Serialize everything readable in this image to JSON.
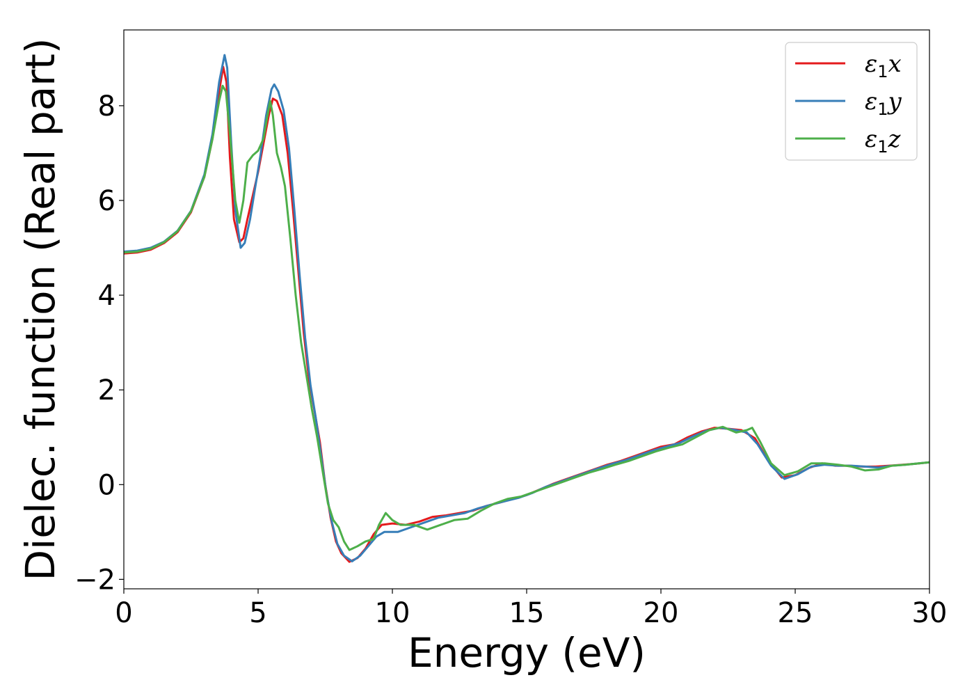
{
  "chart_data": {
    "type": "line",
    "xlabel": "Energy (eV)",
    "ylabel": "Dielec. function (Real part)",
    "xlim": [
      0,
      30
    ],
    "ylim": [
      -2.2,
      9.6
    ],
    "xticks": [
      0,
      5,
      10,
      15,
      20,
      25,
      30
    ],
    "yticks": [
      -2,
      0,
      2,
      4,
      6,
      8
    ],
    "ytick_labels": [
      "−2",
      "0",
      "2",
      "4",
      "6",
      "8"
    ],
    "grid": false,
    "legend_position": "top-right",
    "series": [
      {
        "name": "x",
        "legend_symbol": "ε",
        "legend_sub": "1",
        "color": "#e41a1c",
        "points": [
          [
            0,
            4.88
          ],
          [
            0.5,
            4.9
          ],
          [
            1,
            4.96
          ],
          [
            1.5,
            5.1
          ],
          [
            2,
            5.33
          ],
          [
            2.5,
            5.75
          ],
          [
            3,
            6.5
          ],
          [
            3.3,
            7.3
          ],
          [
            3.55,
            8.3
          ],
          [
            3.7,
            8.82
          ],
          [
            3.82,
            8.5
          ],
          [
            3.95,
            6.9
          ],
          [
            4.1,
            5.6
          ],
          [
            4.3,
            5.12
          ],
          [
            4.45,
            5.2
          ],
          [
            4.6,
            5.6
          ],
          [
            4.8,
            6.1
          ],
          [
            5.0,
            6.6
          ],
          [
            5.2,
            7.2
          ],
          [
            5.4,
            7.8
          ],
          [
            5.55,
            8.15
          ],
          [
            5.7,
            8.1
          ],
          [
            5.9,
            7.8
          ],
          [
            6.1,
            7.0
          ],
          [
            6.3,
            5.8
          ],
          [
            6.5,
            4.5
          ],
          [
            6.7,
            3.2
          ],
          [
            6.9,
            2.2
          ],
          [
            7.1,
            1.55
          ],
          [
            7.3,
            0.9
          ],
          [
            7.5,
            0.0
          ],
          [
            7.7,
            -0.7
          ],
          [
            7.9,
            -1.2
          ],
          [
            8.1,
            -1.45
          ],
          [
            8.4,
            -1.63
          ],
          [
            8.7,
            -1.55
          ],
          [
            9.0,
            -1.35
          ],
          [
            9.3,
            -1.05
          ],
          [
            9.6,
            -0.85
          ],
          [
            10.0,
            -0.82
          ],
          [
            10.5,
            -0.85
          ],
          [
            11,
            -0.78
          ],
          [
            11.5,
            -0.68
          ],
          [
            12,
            -0.65
          ],
          [
            12.5,
            -0.6
          ],
          [
            13,
            -0.55
          ],
          [
            13.5,
            -0.45
          ],
          [
            14,
            -0.38
          ],
          [
            14.5,
            -0.3
          ],
          [
            15,
            -0.22
          ],
          [
            15.5,
            -0.1
          ],
          [
            16,
            0.02
          ],
          [
            16.5,
            0.12
          ],
          [
            17,
            0.22
          ],
          [
            17.5,
            0.32
          ],
          [
            18,
            0.42
          ],
          [
            18.5,
            0.5
          ],
          [
            19,
            0.6
          ],
          [
            19.5,
            0.7
          ],
          [
            20,
            0.8
          ],
          [
            20.5,
            0.85
          ],
          [
            21,
            1.0
          ],
          [
            21.5,
            1.12
          ],
          [
            22,
            1.2
          ],
          [
            22.5,
            1.18
          ],
          [
            23,
            1.15
          ],
          [
            23.5,
            0.98
          ],
          [
            24,
            0.5
          ],
          [
            24.5,
            0.15
          ],
          [
            25,
            0.2
          ],
          [
            25.5,
            0.35
          ],
          [
            26,
            0.45
          ],
          [
            26.5,
            0.4
          ],
          [
            27,
            0.4
          ],
          [
            27.5,
            0.38
          ],
          [
            28,
            0.38
          ],
          [
            28.5,
            0.4
          ],
          [
            29,
            0.42
          ],
          [
            29.5,
            0.44
          ],
          [
            30,
            0.47
          ]
        ]
      },
      {
        "name": "y",
        "legend_symbol": "ε",
        "legend_sub": "1",
        "color": "#377eb8",
        "points": [
          [
            0,
            4.92
          ],
          [
            0.5,
            4.94
          ],
          [
            1,
            5.0
          ],
          [
            1.5,
            5.13
          ],
          [
            2,
            5.36
          ],
          [
            2.5,
            5.78
          ],
          [
            3,
            6.55
          ],
          [
            3.3,
            7.4
          ],
          [
            3.55,
            8.5
          ],
          [
            3.75,
            9.07
          ],
          [
            3.85,
            8.8
          ],
          [
            4.0,
            7.2
          ],
          [
            4.15,
            5.8
          ],
          [
            4.35,
            5.0
          ],
          [
            4.5,
            5.1
          ],
          [
            4.7,
            5.6
          ],
          [
            4.9,
            6.3
          ],
          [
            5.1,
            7.0
          ],
          [
            5.3,
            7.8
          ],
          [
            5.5,
            8.35
          ],
          [
            5.6,
            8.45
          ],
          [
            5.75,
            8.3
          ],
          [
            5.95,
            7.9
          ],
          [
            6.15,
            7.1
          ],
          [
            6.35,
            5.8
          ],
          [
            6.55,
            4.4
          ],
          [
            6.75,
            3.1
          ],
          [
            6.95,
            2.1
          ],
          [
            7.15,
            1.4
          ],
          [
            7.35,
            0.6
          ],
          [
            7.55,
            -0.2
          ],
          [
            7.75,
            -0.8
          ],
          [
            7.95,
            -1.25
          ],
          [
            8.2,
            -1.5
          ],
          [
            8.5,
            -1.62
          ],
          [
            8.8,
            -1.5
          ],
          [
            9.1,
            -1.3
          ],
          [
            9.4,
            -1.1
          ],
          [
            9.7,
            -1.0
          ],
          [
            10.2,
            -1.0
          ],
          [
            10.7,
            -0.9
          ],
          [
            11.2,
            -0.8
          ],
          [
            11.7,
            -0.7
          ],
          [
            12.2,
            -0.65
          ],
          [
            12.7,
            -0.6
          ],
          [
            13.2,
            -0.5
          ],
          [
            13.7,
            -0.42
          ],
          [
            14.2,
            -0.35
          ],
          [
            14.7,
            -0.28
          ],
          [
            15.2,
            -0.18
          ],
          [
            15.7,
            -0.05
          ],
          [
            16.2,
            0.05
          ],
          [
            16.7,
            0.15
          ],
          [
            17.2,
            0.25
          ],
          [
            17.7,
            0.35
          ],
          [
            18.2,
            0.44
          ],
          [
            18.7,
            0.52
          ],
          [
            19.2,
            0.62
          ],
          [
            19.7,
            0.72
          ],
          [
            20.2,
            0.8
          ],
          [
            20.7,
            0.88
          ],
          [
            21.2,
            1.02
          ],
          [
            21.7,
            1.14
          ],
          [
            22.2,
            1.2
          ],
          [
            22.7,
            1.16
          ],
          [
            23.2,
            1.1
          ],
          [
            23.6,
            0.85
          ],
          [
            24.1,
            0.4
          ],
          [
            24.6,
            0.12
          ],
          [
            25.1,
            0.22
          ],
          [
            25.6,
            0.38
          ],
          [
            26.1,
            0.42
          ],
          [
            26.6,
            0.4
          ],
          [
            27.1,
            0.4
          ],
          [
            27.6,
            0.38
          ],
          [
            28.1,
            0.36
          ],
          [
            28.6,
            0.4
          ],
          [
            29.1,
            0.42
          ],
          [
            29.6,
            0.45
          ],
          [
            30,
            0.47
          ]
        ]
      },
      {
        "name": "z",
        "legend_symbol": "ε",
        "legend_sub": "1",
        "color": "#4daf4a",
        "points": [
          [
            0,
            4.9
          ],
          [
            0.5,
            4.92
          ],
          [
            1,
            4.98
          ],
          [
            1.5,
            5.12
          ],
          [
            2,
            5.35
          ],
          [
            2.5,
            5.77
          ],
          [
            3,
            6.5
          ],
          [
            3.3,
            7.3
          ],
          [
            3.55,
            8.1
          ],
          [
            3.68,
            8.42
          ],
          [
            3.8,
            8.3
          ],
          [
            3.95,
            7.4
          ],
          [
            4.15,
            6.0
          ],
          [
            4.3,
            5.53
          ],
          [
            4.45,
            6.0
          ],
          [
            4.6,
            6.8
          ],
          [
            4.8,
            6.95
          ],
          [
            5.0,
            7.05
          ],
          [
            5.2,
            7.3
          ],
          [
            5.35,
            7.8
          ],
          [
            5.45,
            8.1
          ],
          [
            5.55,
            7.8
          ],
          [
            5.7,
            7.0
          ],
          [
            5.85,
            6.7
          ],
          [
            6.0,
            6.3
          ],
          [
            6.2,
            5.2
          ],
          [
            6.4,
            4.0
          ],
          [
            6.6,
            3.0
          ],
          [
            6.8,
            2.3
          ],
          [
            7.0,
            1.6
          ],
          [
            7.2,
            1.0
          ],
          [
            7.4,
            0.3
          ],
          [
            7.6,
            -0.4
          ],
          [
            7.8,
            -0.75
          ],
          [
            8.0,
            -0.9
          ],
          [
            8.2,
            -1.2
          ],
          [
            8.4,
            -1.38
          ],
          [
            8.7,
            -1.3
          ],
          [
            9.0,
            -1.2
          ],
          [
            9.3,
            -1.15
          ],
          [
            9.5,
            -0.85
          ],
          [
            9.75,
            -0.6
          ],
          [
            10.0,
            -0.75
          ],
          [
            10.3,
            -0.85
          ],
          [
            10.8,
            -0.85
          ],
          [
            11.3,
            -0.95
          ],
          [
            11.8,
            -0.85
          ],
          [
            12.3,
            -0.75
          ],
          [
            12.8,
            -0.72
          ],
          [
            13.3,
            -0.55
          ],
          [
            13.8,
            -0.4
          ],
          [
            14.3,
            -0.3
          ],
          [
            14.8,
            -0.25
          ],
          [
            15.3,
            -0.15
          ],
          [
            15.8,
            -0.05
          ],
          [
            16.3,
            0.05
          ],
          [
            16.8,
            0.15
          ],
          [
            17.3,
            0.25
          ],
          [
            17.8,
            0.33
          ],
          [
            18.3,
            0.42
          ],
          [
            18.8,
            0.5
          ],
          [
            19.3,
            0.6
          ],
          [
            19.8,
            0.7
          ],
          [
            20.3,
            0.78
          ],
          [
            20.8,
            0.85
          ],
          [
            21.3,
            1.0
          ],
          [
            21.8,
            1.15
          ],
          [
            22.3,
            1.22
          ],
          [
            22.8,
            1.1
          ],
          [
            23.2,
            1.15
          ],
          [
            23.4,
            1.2
          ],
          [
            23.7,
            0.9
          ],
          [
            24.1,
            0.45
          ],
          [
            24.6,
            0.2
          ],
          [
            25.1,
            0.28
          ],
          [
            25.6,
            0.45
          ],
          [
            26.1,
            0.45
          ],
          [
            26.6,
            0.42
          ],
          [
            27.1,
            0.38
          ],
          [
            27.6,
            0.3
          ],
          [
            28.1,
            0.32
          ],
          [
            28.6,
            0.4
          ],
          [
            29.1,
            0.42
          ],
          [
            29.6,
            0.45
          ],
          [
            30,
            0.47
          ]
        ]
      }
    ]
  }
}
